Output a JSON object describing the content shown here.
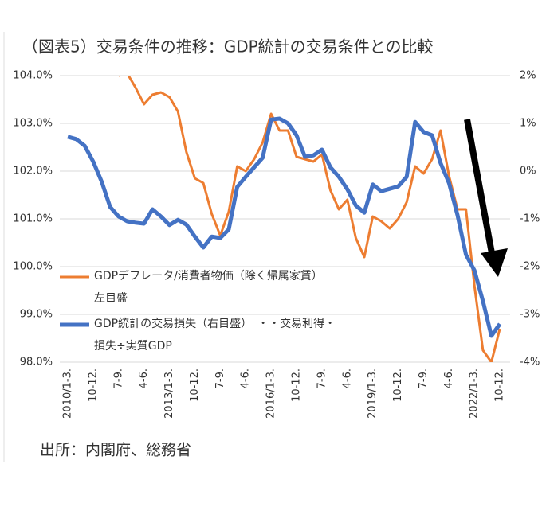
{
  "chart_data": {
    "type": "line",
    "title": "（図表5）交易条件の推移：GDP統計の交易条件との比較",
    "source": "出所：内閣府、総務省",
    "categories": [
      "2010/1-3.",
      null,
      null,
      "10-12.",
      null,
      null,
      "7-9.",
      null,
      null,
      "4-6.",
      null,
      null,
      "2013/1-3.",
      null,
      null,
      "10-12.",
      null,
      null,
      "7-9.",
      null,
      null,
      "4-6.",
      null,
      null,
      "2016/1-3.",
      null,
      null,
      "10-12.",
      null,
      null,
      "7-9.",
      null,
      null,
      "4-6.",
      null,
      null,
      "2019/1-3.",
      null,
      null,
      "10-12.",
      null,
      null,
      "7-9.",
      null,
      null,
      "4-6.",
      null,
      null,
      "2022/1-3.",
      null,
      null,
      "10-12."
    ],
    "series": [
      {
        "name": "GDPデフレータ/消費者物価（除く帰属家賃）\n左目盛",
        "color": "#ed7d31",
        "axis": "y",
        "values": [
          null,
          null,
          null,
          null,
          null,
          null,
          104.0,
          104.05,
          103.75,
          103.4,
          103.6,
          103.65,
          103.55,
          103.25,
          102.4,
          101.85,
          101.75,
          101.1,
          100.65,
          101.15,
          102.1,
          102.0,
          102.25,
          102.6,
          103.2,
          102.85,
          102.85,
          102.3,
          102.25,
          102.2,
          102.35,
          101.6,
          101.2,
          101.4,
          100.6,
          100.2,
          101.05,
          100.95,
          100.8,
          101.0,
          101.35,
          102.1,
          101.95,
          102.25,
          102.85,
          101.9,
          101.2,
          101.2,
          99.6,
          98.25,
          98.0,
          98.7
        ]
      },
      {
        "name": "GDP統計の交易損失（右目盛）　・・交易利得・\n損失÷実質GDP",
        "color": "#4472c4",
        "axis": "y2",
        "values": [
          0.72,
          0.67,
          0.53,
          0.2,
          -0.22,
          -0.75,
          -0.95,
          -1.05,
          -1.08,
          -1.1,
          -0.8,
          -0.95,
          -1.13,
          -1.02,
          -1.12,
          -1.37,
          -1.6,
          -1.37,
          -1.4,
          -1.22,
          -0.33,
          -0.12,
          0.08,
          0.28,
          1.08,
          1.1,
          1.0,
          0.75,
          0.3,
          0.33,
          0.45,
          0.08,
          -0.12,
          -0.38,
          -0.72,
          -0.87,
          -0.28,
          -0.42,
          -0.37,
          -0.32,
          -0.12,
          1.03,
          0.82,
          0.75,
          0.17,
          -0.25,
          -0.92,
          -1.75,
          -2.08,
          -2.72,
          -3.45,
          -3.2
        ]
      }
    ],
    "ylim": [
      98,
      104
    ],
    "yticks": [
      {
        "value": 98,
        "label": "98.0%"
      },
      {
        "value": 99,
        "label": "99.0%"
      },
      {
        "value": 100,
        "label": "100.0%"
      },
      {
        "value": 101,
        "label": "101.0%"
      },
      {
        "value": 102,
        "label": "102.0%"
      },
      {
        "value": 103,
        "label": "103.0%"
      },
      {
        "value": 104,
        "label": "104.0%"
      }
    ],
    "y2lim": [
      -4,
      2
    ],
    "y2ticks": [
      {
        "value": -4,
        "label": "-4%"
      },
      {
        "value": -3,
        "label": "-3%"
      },
      {
        "value": -2,
        "label": "-2%"
      },
      {
        "value": -1,
        "label": "-1%"
      },
      {
        "value": 0,
        "label": "0%"
      },
      {
        "value": 1,
        "label": "1%"
      },
      {
        "value": 2,
        "label": "2%"
      }
    ],
    "grid": true
  }
}
